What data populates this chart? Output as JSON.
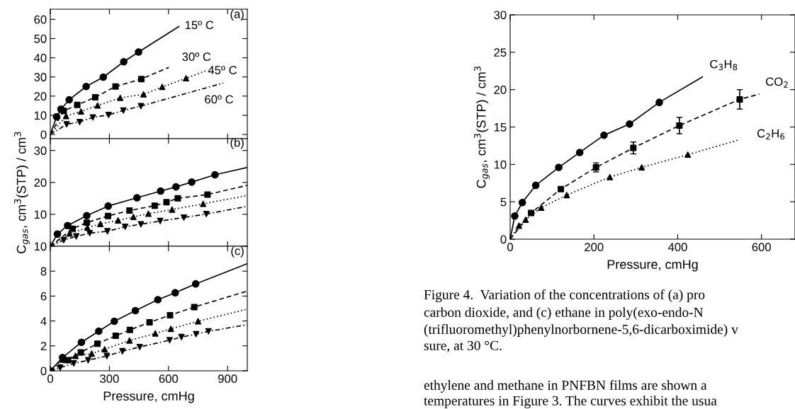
{
  "chart_data": [
    {
      "type": "scatter",
      "xlim": [
        0,
        1000
      ],
      "ylim": [
        -2.2,
        65.3
      ],
      "xticks": [
        0,
        300,
        600,
        900
      ],
      "yticks": [
        0,
        10,
        20,
        30,
        40,
        50,
        60
      ],
      "tick_labels": "y",
      "annotations": [
        "(a)",
        "15º C",
        "30º C",
        "45º C",
        "60º C"
      ],
      "series": [
        {
          "marker": "circle",
          "color": "#000000",
          "x": [
            32,
            54,
            96,
            182,
            269,
            373,
            448
          ],
          "values": [
            9.2,
            13.2,
            18.1,
            25,
            29.9,
            37.9,
            43
          ]
        },
        {
          "type": "line",
          "line_style": "solid",
          "color": "#000000",
          "x": [
            0,
            32,
            54,
            96,
            182,
            269,
            373,
            448,
            653
          ],
          "values": [
            0,
            9.2,
            13.2,
            18.1,
            25,
            29.9,
            37.9,
            43,
            56.3
          ]
        },
        {
          "type": "scatter",
          "marker": "square",
          "color": "#000000",
          "x": [
            68,
            137,
            228,
            331,
            462
          ],
          "values": [
            12.3,
            15.4,
            19.4,
            25,
            28.9
          ]
        },
        {
          "type": "line",
          "line_style": "dashed",
          "color": "#000000",
          "x": [
            0,
            68,
            137,
            228,
            331,
            462,
            602
          ],
          "values": [
            0,
            12.3,
            15.4,
            19.4,
            25,
            28.9,
            35
          ]
        },
        {
          "type": "scatter",
          "marker": "triangle",
          "color": "#000000",
          "x": [
            80,
            156,
            240,
            355,
            473,
            568,
            689
          ],
          "values": [
            9.6,
            12,
            15.1,
            19.1,
            20.9,
            24.8,
            29.3
          ]
        },
        {
          "type": "line",
          "line_style": "dotted",
          "color": "#000000",
          "x": [
            0,
            80,
            156,
            240,
            355,
            473,
            568,
            689,
            800
          ],
          "values": [
            0,
            9.6,
            12,
            15.1,
            19.1,
            20.9,
            24.8,
            29.3,
            33.6
          ]
        },
        {
          "type": "scatter",
          "marker": "triangle_down",
          "color": "#000000",
          "x": [
            83,
            149,
            216,
            296,
            371,
            460
          ],
          "values": [
            5.3,
            6.5,
            8.9,
            10.2,
            12.5,
            14.8
          ]
        },
        {
          "type": "line",
          "line_style": "dashdot",
          "color": "#000000",
          "x": [
            0,
            83,
            149,
            216,
            296,
            371,
            460,
            878
          ],
          "values": [
            0,
            5.3,
            6.5,
            8.9,
            10.2,
            12.5,
            14.8,
            26.8
          ]
        }
      ]
    },
    {
      "type": "scatter",
      "xlim": [
        0,
        1000
      ],
      "ylim": [
        0,
        33.7
      ],
      "xticks": [
        0,
        300,
        600,
        900
      ],
      "yticks": [
        10,
        20,
        30
      ],
      "tick_labels": "y",
      "ylabel": "C$_{gas}$, cm$^{3}$(STP) / cm$^{3}$",
      "annotations": [
        "(b)"
      ],
      "series": [
        {
          "type": "scatter",
          "marker": "circle",
          "color": "#000000",
          "x": [
            36,
            88,
            185,
            294,
            440,
            560,
            638,
            718,
            836
          ],
          "values": [
            3.8,
            6.5,
            9.6,
            12.6,
            15.2,
            17.3,
            18.6,
            20.1,
            22.4
          ]
        },
        {
          "type": "line",
          "line_style": "solid",
          "color": "#000000",
          "x": [
            0,
            36,
            88,
            185,
            294,
            440,
            560,
            638,
            718,
            836,
            1000
          ],
          "values": [
            0,
            3.8,
            6.5,
            9.6,
            12.6,
            15.2,
            17.3,
            18.6,
            20.1,
            22.4,
            24.7
          ]
        },
        {
          "type": "scatter",
          "marker": "square",
          "color": "#000000",
          "x": [
            113,
            185,
            293,
            402,
            530,
            590,
            647,
            798
          ],
          "values": [
            5.5,
            7.4,
            9.5,
            11.2,
            12.7,
            13.8,
            15.0,
            16.2
          ]
        },
        {
          "type": "line",
          "line_style": "dashed",
          "color": "#000000",
          "x": [
            0,
            113,
            185,
            293,
            402,
            530,
            590,
            647,
            798,
            1000
          ],
          "values": [
            0,
            5.5,
            7.4,
            9.5,
            11.2,
            12.7,
            13.8,
            15.0,
            16.2,
            19.1
          ]
        },
        {
          "type": "scatter",
          "marker": "triangle",
          "color": "#000000",
          "x": [
            98,
            188,
            254,
            344,
            422,
            498,
            618,
            776
          ],
          "values": [
            4.0,
            5.8,
            7.0,
            8.1,
            9.2,
            10.2,
            11.5,
            13.3
          ]
        },
        {
          "type": "line",
          "line_style": "dotted",
          "color": "#000000",
          "x": [
            0,
            98,
            188,
            254,
            344,
            422,
            498,
            618,
            776,
            1000
          ],
          "values": [
            0,
            4.0,
            5.8,
            7.0,
            8.1,
            9.2,
            10.2,
            11.5,
            13.3,
            15.9
          ]
        },
        {
          "type": "scatter",
          "marker": "triangle_down",
          "color": "#000000",
          "x": [
            68,
            132,
            200,
            290,
            380,
            460,
            558,
            678,
            792
          ],
          "values": [
            1.9,
            3.1,
            4.1,
            4.7,
            6.1,
            6.9,
            7.9,
            9.0,
            10.1
          ]
        },
        {
          "type": "line",
          "line_style": "dashdot",
          "color": "#000000",
          "x": [
            0,
            68,
            132,
            200,
            290,
            380,
            460,
            558,
            678,
            792,
            1000
          ],
          "values": [
            0,
            1.9,
            3.1,
            4.1,
            4.7,
            6.1,
            6.9,
            7.9,
            9.0,
            10.1,
            12.5
          ]
        }
      ]
    },
    {
      "type": "scatter",
      "xlim": [
        0,
        1000
      ],
      "ylim": [
        0,
        10
      ],
      "xticks": [
        0,
        300,
        600,
        900
      ],
      "yticks": [
        0,
        2,
        4,
        6,
        8,
        10
      ],
      "xlabel": "Pressure, cmHg",
      "annotations": [
        "(c)"
      ],
      "series": [
        {
          "type": "scatter",
          "marker": "circle",
          "color": "#000000",
          "x": [
            0,
            62,
            158,
            246,
            325,
            432,
            546,
            634,
            738
          ],
          "values": [
            0,
            1.06,
            2.29,
            3.18,
            3.98,
            4.83,
            5.71,
            6.27,
            6.98
          ]
        },
        {
          "type": "line",
          "line_style": "solid",
          "color": "#000000",
          "x": [
            0,
            62,
            158,
            246,
            325,
            432,
            546,
            634,
            738,
            1000
          ],
          "values": [
            0,
            1.06,
            2.29,
            3.18,
            3.98,
            4.83,
            5.71,
            6.27,
            6.98,
            8.6
          ]
        },
        {
          "type": "scatter",
          "marker": "square",
          "color": "#000000",
          "x": [
            90,
            155,
            239,
            332,
            404,
            504,
            608,
            731
          ],
          "values": [
            0.85,
            1.48,
            2.18,
            2.81,
            3.28,
            3.89,
            4.46,
            5.12
          ]
        },
        {
          "type": "line",
          "line_style": "dashed",
          "color": "#000000",
          "x": [
            0,
            90,
            155,
            239,
            332,
            404,
            504,
            608,
            731,
            1000
          ],
          "values": [
            0,
            0.85,
            1.48,
            2.18,
            2.81,
            3.28,
            3.89,
            4.46,
            5.12,
            6.4
          ]
        },
        {
          "type": "scatter",
          "marker": "triangle",
          "color": "#000000",
          "x": [
            62,
            128,
            210,
            276,
            402,
            533,
            612,
            750
          ],
          "values": [
            0.9,
            1.2,
            1.38,
            1.73,
            2.43,
            3.0,
            3.37,
            3.98
          ]
        },
        {
          "type": "line",
          "line_style": "dotted",
          "color": "#000000",
          "x": [
            0,
            62,
            128,
            210,
            276,
            402,
            533,
            612,
            750,
            1000
          ],
          "values": [
            0,
            0.9,
            1.2,
            1.38,
            1.73,
            2.43,
            3.0,
            3.37,
            3.98,
            4.95
          ]
        },
        {
          "type": "scatter",
          "marker": "triangle_down",
          "color": "#000000",
          "x": [
            50,
            119,
            192,
            287,
            366,
            454,
            606,
            666,
            740,
            803
          ],
          "values": [
            0.25,
            0.59,
            0.85,
            1.19,
            1.57,
            1.91,
            2.46,
            2.71,
            2.94,
            3.17
          ]
        },
        {
          "type": "line",
          "line_style": "dashdot",
          "color": "#000000",
          "x": [
            0,
            50,
            119,
            192,
            287,
            366,
            454,
            606,
            666,
            740,
            803,
            1000
          ],
          "values": [
            0,
            0.25,
            0.59,
            0.85,
            1.19,
            1.57,
            1.91,
            2.46,
            2.71,
            2.94,
            3.17,
            3.7
          ]
        }
      ]
    },
    {
      "type": "scatter",
      "xlim": [
        0,
        680
      ],
      "ylim": [
        0,
        30
      ],
      "xticks": [
        0,
        200,
        400,
        600
      ],
      "yticks": [
        0,
        5,
        10,
        15,
        20,
        25,
        30
      ],
      "xlabel": "Pressure, cmHg",
      "ylabel": "C$_{gas}$, cm$^{3}$(STP) / cm$^{3}$",
      "annotations": [
        "C$_{3}$H$_{8}$",
        "CO$_{2}$",
        "C$_{2}$H$_{6}$",
        "Figure 4.  Variation of the concentrations of (a) pro",
        "carbon dioxide, and (c) ethane in poly(exo-endo-N",
        "(trifluoromethyl)phenylnorbornene-5,6-dicarboximide) v",
        "sure, at 30 °C.",
        "ethylene and methane in PNFBN films are shown a",
        "temperatures in Figure 3. The curves exhibit the usua"
      ],
      "series": [
        {
          "type": "scatter",
          "marker": "circle",
          "color": "#000000",
          "x": [
            11,
            29,
            61,
            116,
            166,
            224,
            285,
            356
          ],
          "values": [
            3.1,
            4.9,
            7.2,
            9.6,
            11.6,
            13.9,
            15.4,
            18.3
          ]
        },
        {
          "type": "line",
          "line_style": "solid",
          "color": "#000000",
          "x": [
            0,
            11,
            29,
            61,
            116,
            166,
            224,
            285,
            356,
            459
          ],
          "values": [
            0,
            3.1,
            4.9,
            7.2,
            9.6,
            11.6,
            13.9,
            15.4,
            18.3,
            21.7
          ]
        },
        {
          "type": "scatter",
          "marker": "square",
          "color": "#000000",
          "x": [
            50,
            121,
            205,
            294,
            404,
            548
          ],
          "values": [
            3.5,
            6.7,
            9.6,
            12.2,
            15.2,
            18.7
          ],
          "errors": [
            null,
            null,
            0.6,
            0.8,
            1.1,
            1.3
          ]
        },
        {
          "type": "line",
          "line_style": "dashed",
          "color": "#000000",
          "x": [
            0,
            50,
            121,
            205,
            294,
            404,
            548,
            595
          ],
          "values": [
            0,
            3.5,
            6.7,
            9.6,
            12.2,
            15.2,
            18.7,
            19.4
          ]
        },
        {
          "type": "scatter",
          "marker": "triangle",
          "color": "#000000",
          "x": [
            21,
            37,
            74,
            135,
            238,
            314,
            424
          ],
          "values": [
            1.8,
            2.6,
            4.2,
            5.9,
            8.3,
            9.6,
            11.3
          ]
        },
        {
          "type": "line",
          "line_style": "dotted",
          "color": "#000000",
          "x": [
            0,
            21,
            37,
            74,
            135,
            238,
            314,
            424,
            547
          ],
          "values": [
            0,
            1.8,
            2.6,
            4.2,
            5.9,
            8.3,
            9.6,
            11.3,
            13.3
          ]
        }
      ]
    }
  ]
}
